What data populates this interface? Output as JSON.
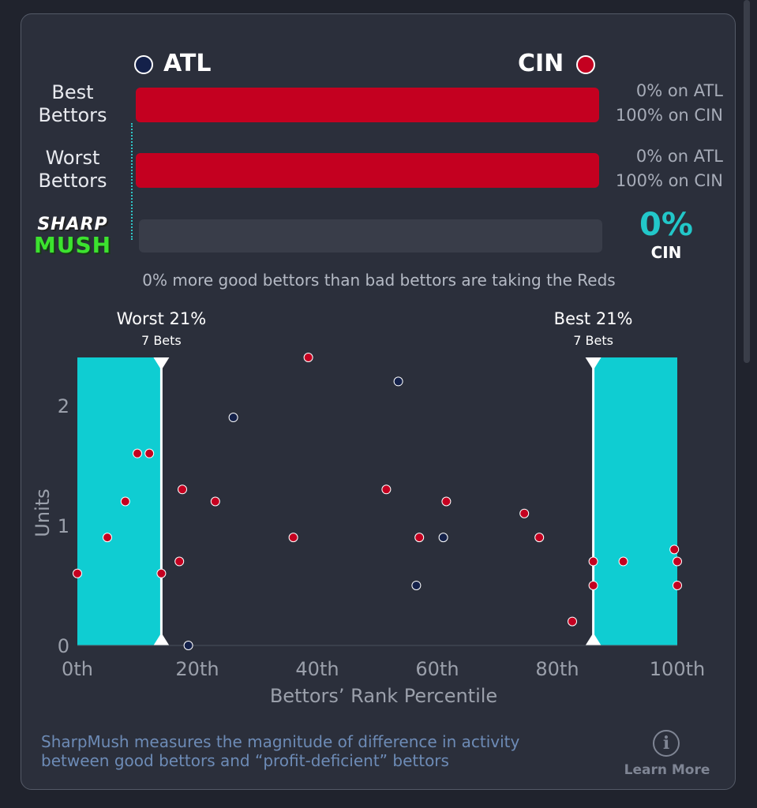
{
  "matchup": {
    "away": {
      "abbr": "ATL",
      "color": "#14214a"
    },
    "home": {
      "abbr": "CIN",
      "color": "#c40020"
    }
  },
  "best_bettors": {
    "label_line1": "Best",
    "label_line2": "Bettors",
    "away_pct_text": "0% on ATL",
    "home_pct_text": "100% on CIN",
    "home_fraction": 1.0
  },
  "worst_bettors": {
    "label_line1": "Worst",
    "label_line2": "Bettors",
    "away_pct_text": "0% on ATL",
    "home_pct_text": "100% on CIN",
    "home_fraction": 1.0
  },
  "sharpmush": {
    "logo_top": "SHARP",
    "logo_bottom": "MUSH",
    "value": "0%",
    "team": "CIN",
    "fraction": 0.0,
    "summary": "0% more good bettors than bad bettors are taking the Reds"
  },
  "footer": {
    "description_line1": "SharpMush measures the magnitude of difference in activity",
    "description_line2": "between good bettors and “profit-deficient” bettors",
    "learn_more": "Learn More",
    "info_glyph": "i"
  },
  "colors": {
    "highlight": "#0fcdd2",
    "home": "#c40020",
    "away": "#14214a",
    "accent": "#22c7c9"
  },
  "chart_data": {
    "type": "scatter",
    "xlabel": "Bettors’ Rank Percentile",
    "ylabel": "Units",
    "xlim": [
      0,
      100
    ],
    "ylim": [
      0,
      2.4
    ],
    "x_ticks": [
      0,
      20,
      40,
      60,
      80,
      100
    ],
    "x_tick_labels": [
      "0th",
      "20th",
      "40th",
      "60th",
      "80th",
      "100th"
    ],
    "y_ticks": [
      0,
      1,
      2
    ],
    "y_tick_labels": [
      "0",
      "1",
      "2"
    ],
    "grid": false,
    "regions": [
      {
        "title": "Worst 21%",
        "subtitle": "7 Bets",
        "x_range": [
          0,
          14
        ]
      },
      {
        "title": "Best 21%",
        "subtitle": "7 Bets",
        "x_range": [
          86,
          100
        ]
      }
    ],
    "series": [
      {
        "name": "CIN",
        "color": "#c40020",
        "points": [
          [
            0,
            0.6
          ],
          [
            5,
            0.9
          ],
          [
            8,
            1.2
          ],
          [
            10,
            1.6
          ],
          [
            12,
            1.6
          ],
          [
            14,
            0.6
          ],
          [
            17,
            0.7
          ],
          [
            17.5,
            1.3
          ],
          [
            23,
            1.2
          ],
          [
            36,
            0.9
          ],
          [
            38.5,
            2.4
          ],
          [
            51.5,
            1.3
          ],
          [
            57,
            0.9
          ],
          [
            61.5,
            1.2
          ],
          [
            74.5,
            1.1
          ],
          [
            77,
            0.9
          ],
          [
            82.5,
            0.2
          ],
          [
            86,
            0.5
          ],
          [
            86,
            0.7
          ],
          [
            91,
            0.7
          ],
          [
            99.5,
            0.8
          ],
          [
            100,
            0.7
          ],
          [
            100,
            0.5
          ]
        ]
      },
      {
        "name": "ATL",
        "color": "#14214a",
        "points": [
          [
            18.5,
            0
          ],
          [
            26,
            1.9
          ],
          [
            53.5,
            2.2
          ],
          [
            56.5,
            0.5
          ],
          [
            61,
            0.9
          ]
        ]
      }
    ]
  }
}
